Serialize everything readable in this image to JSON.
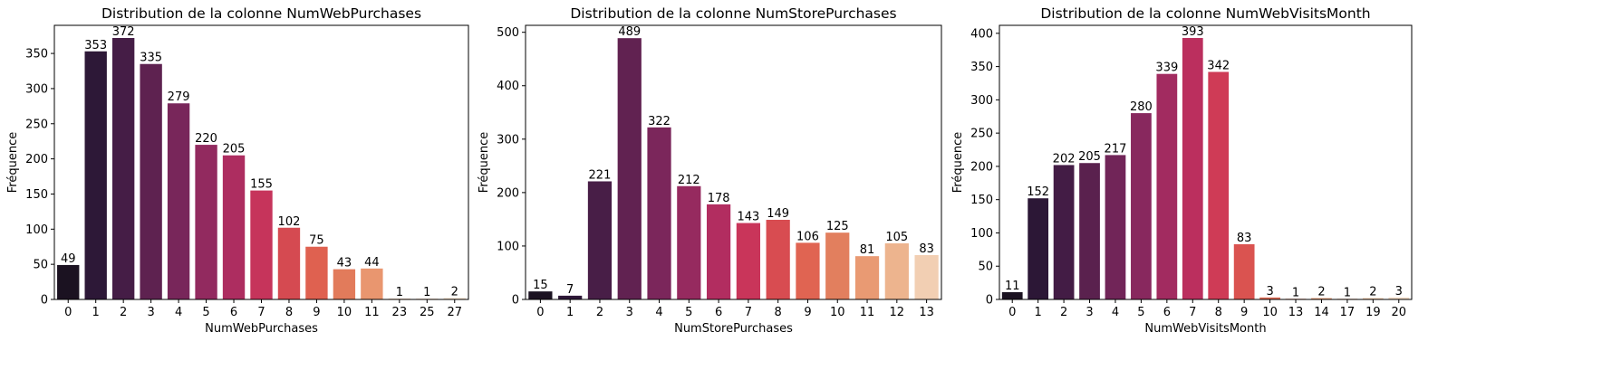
{
  "chart_data": [
    {
      "type": "bar",
      "title": "Distribution de la colonne NumWebPurchases",
      "xlabel": "NumWebPurchases",
      "ylabel": "Fréquence",
      "categories": [
        "0",
        "1",
        "2",
        "3",
        "4",
        "5",
        "6",
        "7",
        "8",
        "9",
        "10",
        "11",
        "23",
        "25",
        "27"
      ],
      "values": [
        49,
        353,
        372,
        335,
        279,
        220,
        205,
        155,
        102,
        75,
        43,
        44,
        1,
        1,
        2
      ],
      "data_labels": [
        "49",
        "353",
        "372",
        "335",
        "279",
        "220",
        "205",
        "155",
        "102",
        "75",
        "43",
        "44",
        "1",
        "1",
        "2"
      ],
      "ylim": [
        0,
        390
      ],
      "yticks": [
        0,
        50,
        100,
        150,
        200,
        250,
        300,
        350
      ],
      "colors": [
        "#1b1221",
        "#2d1837",
        "#451d46",
        "#5e2250",
        "#78265a",
        "#922a5f",
        "#ad2d60",
        "#c6345b",
        "#d54a51",
        "#df6150",
        "#e27b5b",
        "#e9966f",
        "#edaf89",
        "#f0c6a6",
        "#f3dcc6"
      ]
    },
    {
      "type": "bar",
      "title": "Distribution de la colonne NumStorePurchases",
      "xlabel": "NumStorePurchases",
      "ylabel": "Fréquence",
      "categories": [
        "0",
        "1",
        "2",
        "3",
        "4",
        "5",
        "6",
        "7",
        "8",
        "9",
        "10",
        "11",
        "12",
        "13"
      ],
      "values": [
        15,
        7,
        221,
        489,
        322,
        212,
        178,
        143,
        149,
        106,
        125,
        81,
        105,
        83
      ],
      "data_labels": [
        "15",
        "7",
        "221",
        "489",
        "322",
        "212",
        "178",
        "143",
        "149",
        "106",
        "125",
        "81",
        "105",
        "83"
      ],
      "ylim": [
        0,
        513
      ],
      "yticks": [
        0,
        100,
        200,
        300,
        400,
        500
      ],
      "colors": [
        "#1b1221",
        "#2e1838",
        "#481e47",
        "#612251",
        "#7b265b",
        "#962a5f",
        "#b22d60",
        "#c9355a",
        "#d84c51",
        "#e06452",
        "#e27f5e",
        "#e99a73",
        "#edb48e",
        "#f2cfb3"
      ]
    },
    {
      "type": "bar",
      "title": "Distribution de la colonne NumWebVisitsMonth",
      "xlabel": "NumWebVisitsMonth",
      "ylabel": "Fréquence",
      "categories": [
        "0",
        "1",
        "2",
        "3",
        "4",
        "5",
        "6",
        "7",
        "8",
        "9",
        "10",
        "13",
        "14",
        "17",
        "19",
        "20"
      ],
      "values": [
        11,
        152,
        202,
        205,
        217,
        280,
        339,
        393,
        342,
        83,
        3,
        1,
        2,
        1,
        2,
        3
      ],
      "data_labels": [
        "11",
        "152",
        "202",
        "205",
        "217",
        "280",
        "339",
        "393",
        "342",
        "83",
        "3",
        "1",
        "2",
        "1",
        "2",
        "3"
      ],
      "ylim": [
        0,
        412
      ],
      "yticks": [
        0,
        50,
        100,
        150,
        200,
        250,
        300,
        350,
        400
      ],
      "colors": [
        "#1b1221",
        "#2c1736",
        "#431c45",
        "#5a214e",
        "#712558",
        "#88285e",
        "#a22b60",
        "#bb2f5e",
        "#cf3b56",
        "#da5350",
        "#e06a53",
        "#e38360",
        "#e89b74",
        "#ecb18b",
        "#f0c6a6",
        "#f3dcc6"
      ]
    }
  ]
}
